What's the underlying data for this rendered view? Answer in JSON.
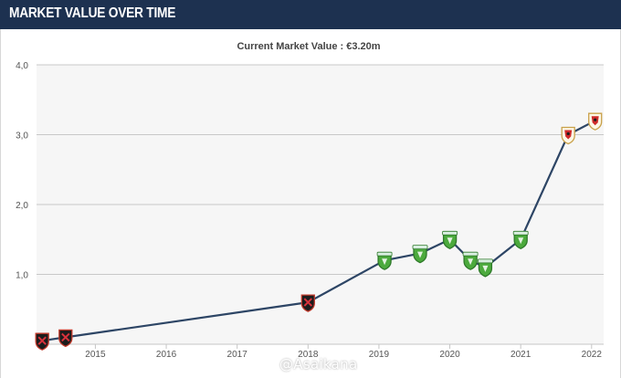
{
  "header": {
    "title": "MARKET VALUE OVER TIME"
  },
  "watermark": "@Asaikana",
  "colors": {
    "header_bg": "#1d3150",
    "line": "#2d4565",
    "plot_bg": "#f6f6f6",
    "grid": "#c8c8c8"
  },
  "chart_data": {
    "type": "line",
    "title": "Current Market Value : €3.20m",
    "xlabel": "",
    "ylabel": "",
    "xlim": [
      2014.17,
      2022.17
    ],
    "ylim": [
      0,
      4
    ],
    "y_ticks": [
      "",
      "1,0",
      "2,0",
      "3,0",
      "4,0"
    ],
    "x_ticks": [
      "2015",
      "2016",
      "2017",
      "2018",
      "2019",
      "2020",
      "2021",
      "2022"
    ],
    "grid": true,
    "series": [
      {
        "x": [
          2014.25,
          2014.58,
          2018.0,
          2019.08,
          2019.58,
          2020.0,
          2020.29,
          2020.5,
          2021.0,
          2021.67,
          2022.05
        ],
        "values": [
          0.05,
          0.1,
          0.6,
          1.2,
          1.3,
          1.5,
          1.2,
          1.1,
          1.5,
          3.0,
          3.2
        ],
        "club_icons": [
          "dark-red-crest-icon",
          "dark-red-crest-icon",
          "dark-red-crest-icon",
          "green-crest-icon",
          "green-crest-icon",
          "green-crest-icon",
          "green-crest-icon",
          "green-crest-icon",
          "green-crest-icon",
          "white-red-crest-icon",
          "white-red-crest-icon"
        ]
      }
    ]
  }
}
